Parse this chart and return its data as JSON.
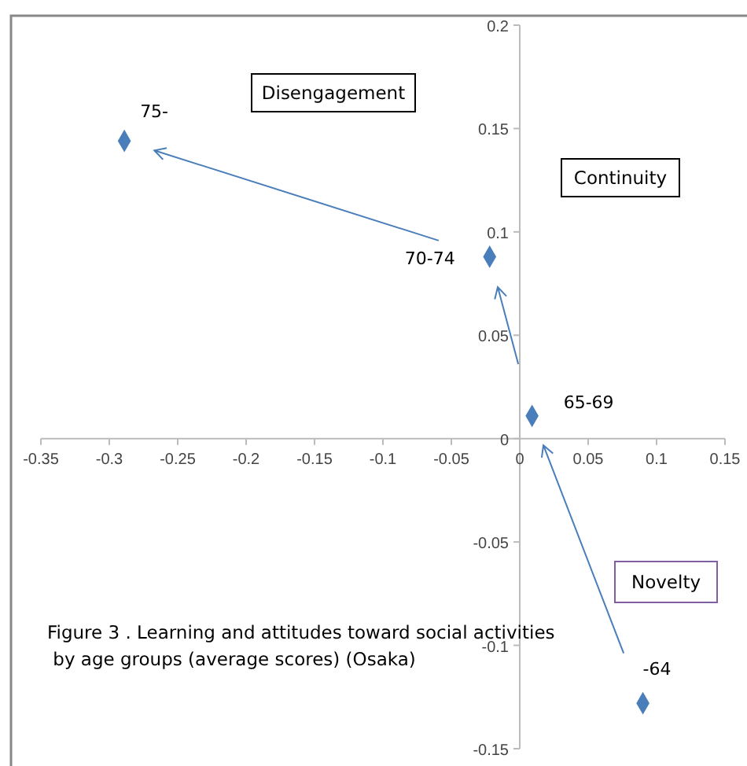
{
  "chart_data": {
    "type": "scatter",
    "marker": "diamond",
    "xlim": [
      -0.35,
      0.15
    ],
    "ylim": [
      -0.15,
      0.2
    ],
    "xticks": [
      -0.35,
      -0.3,
      -0.25,
      -0.2,
      -0.15,
      -0.1,
      -0.05,
      0,
      0.05,
      0.1,
      0.15
    ],
    "yticks": [
      -0.15,
      -0.1,
      -0.05,
      0,
      0.05,
      0.1,
      0.15,
      0.2
    ],
    "grid": false,
    "series": [
      {
        "name": "-64",
        "color": "#4a7ebb",
        "x": [
          0.09
        ],
        "values": [
          -0.128
        ]
      },
      {
        "name": "65-69",
        "color": "#4a7ebb",
        "x": [
          0.009
        ],
        "values": [
          0.011
        ]
      },
      {
        "name": "70-74",
        "color": "#4a7ebb",
        "x": [
          -0.022
        ],
        "values": [
          0.088
        ]
      },
      {
        "name": "75-",
        "color": "#4a7ebb",
        "x": [
          -0.289
        ],
        "values": [
          0.144
        ]
      }
    ],
    "annotations": [
      "Disengagement",
      "Continuity",
      "Novelty",
      "Figure 3 . Learning and attitudes toward social activities\n by age groups (average scores) (Osaka)"
    ]
  }
}
